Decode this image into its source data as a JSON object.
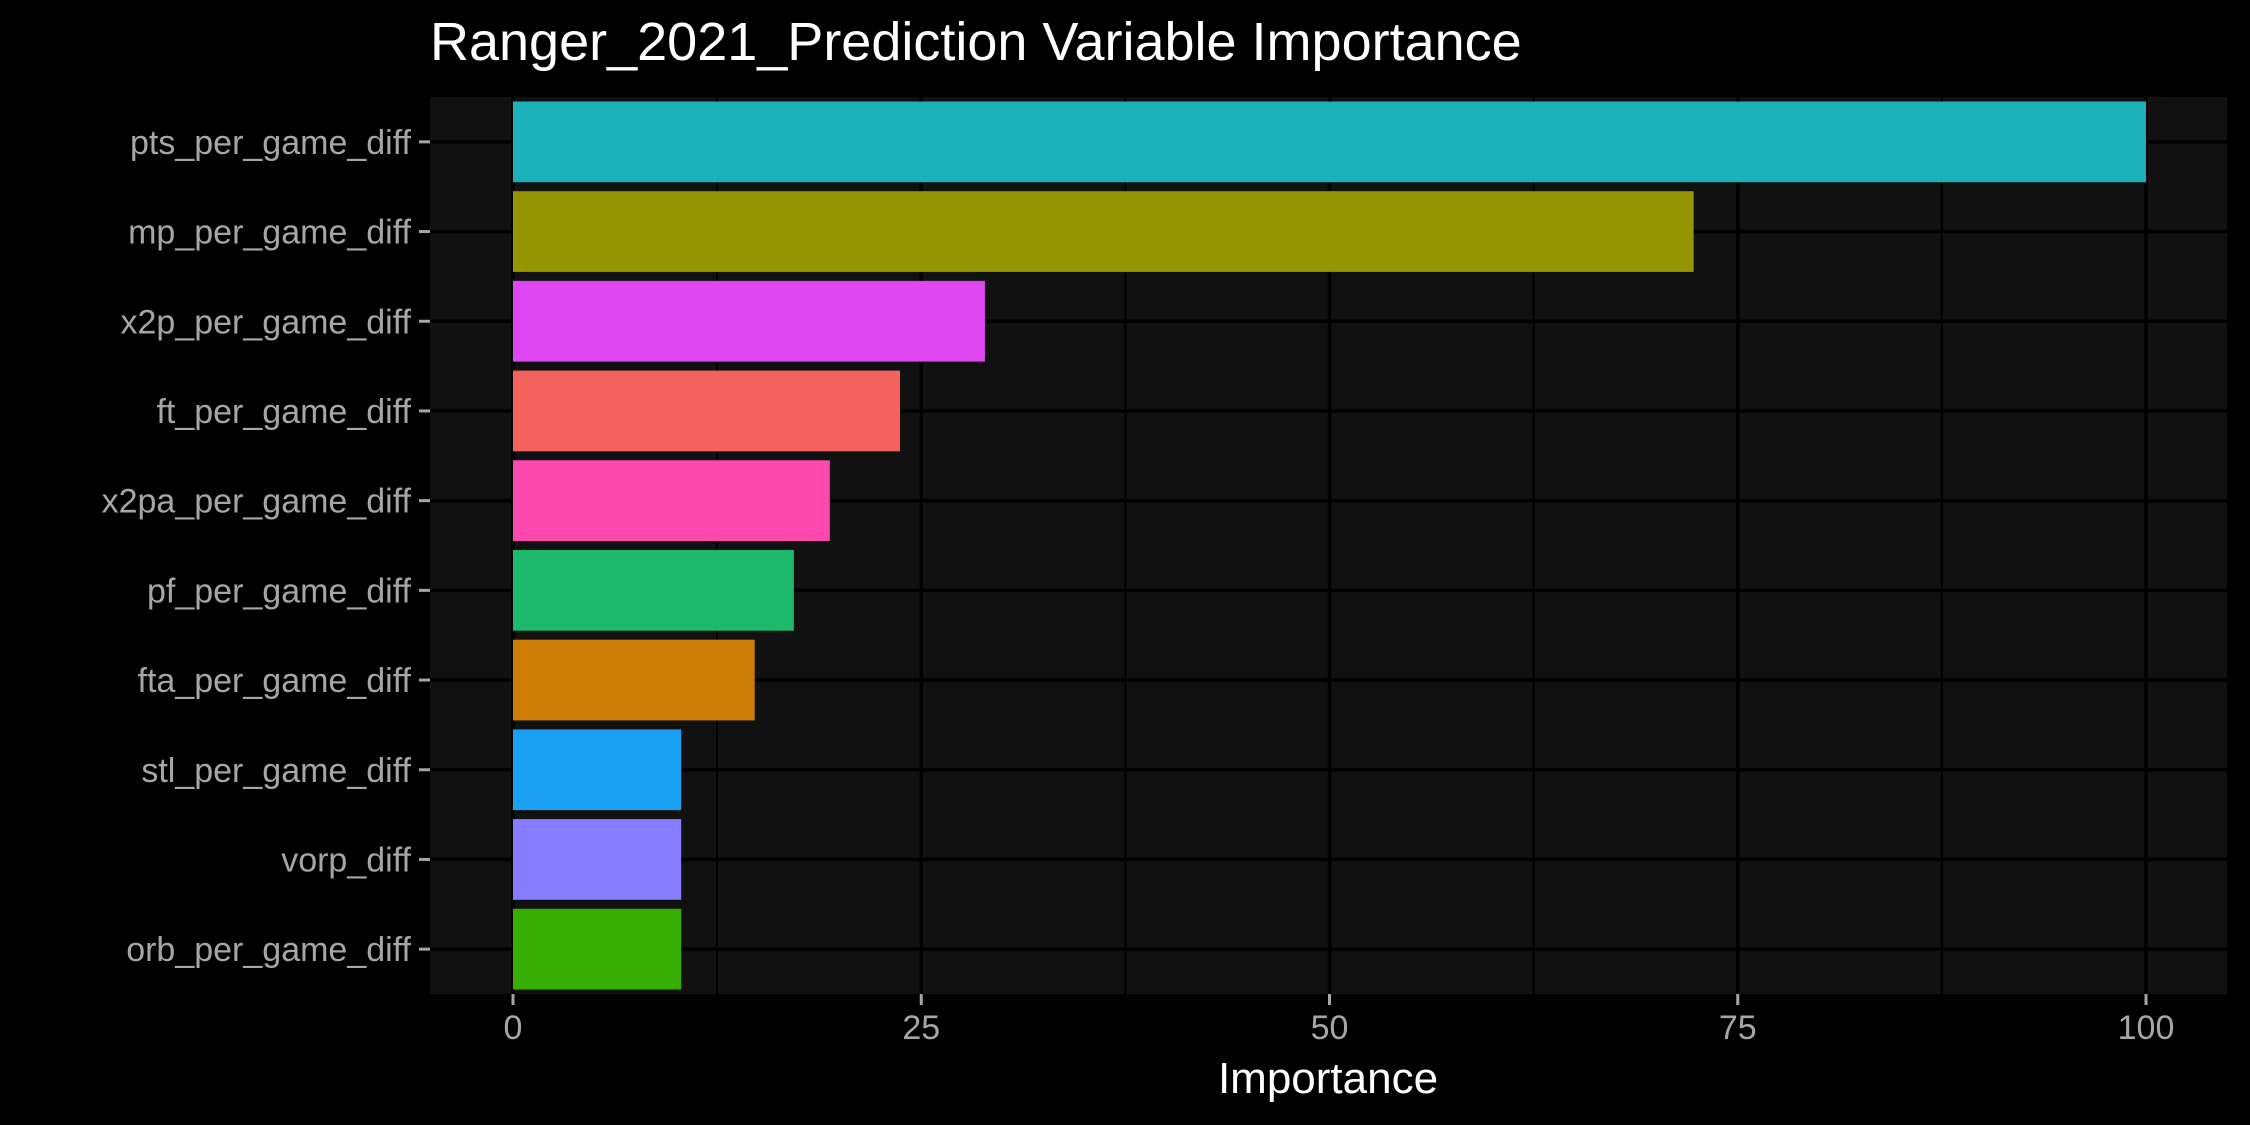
{
  "chart_data": {
    "type": "bar",
    "orientation": "horizontal",
    "title": "Ranger_2021_Prediction Variable Importance",
    "xlabel": "Importance",
    "ylabel": "",
    "xlim": [
      0,
      100
    ],
    "x_ticks": [
      "0",
      "25",
      "50",
      "75",
      "100"
    ],
    "grid": true,
    "background": "#111111",
    "categories": [
      "pts_per_game_diff",
      "mp_per_game_diff",
      "x2p_per_game_diff",
      "ft_per_game_diff",
      "x2pa_per_game_diff",
      "pf_per_game_diff",
      "fta_per_game_diff",
      "stl_per_game_diff",
      "vorp_diff",
      "orb_per_game_diff"
    ],
    "values": [
      100,
      72.3,
      28.9,
      23.7,
      19.4,
      17.2,
      14.8,
      10.3,
      10.3,
      10.3
    ],
    "colors": [
      "#1ab2b8",
      "#939600",
      "#de48f2",
      "#f3625c",
      "#fd48ae",
      "#1db86c",
      "#cd7f05",
      "#19a0f0",
      "#867cff",
      "#36ad00"
    ]
  }
}
